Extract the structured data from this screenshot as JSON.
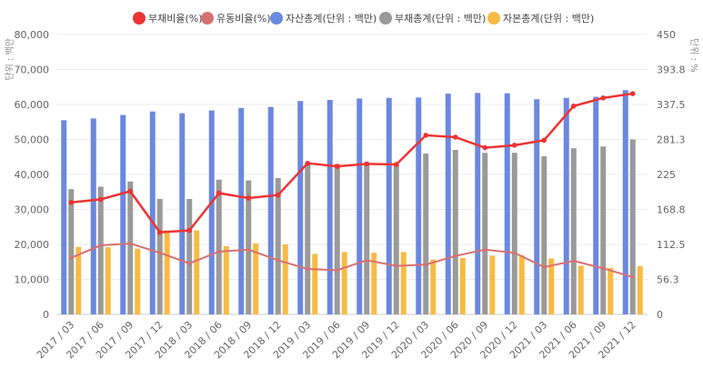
{
  "chart_data": {
    "type": "bar",
    "categories": [
      "2017 / 03",
      "2017 / 06",
      "2017 / 09",
      "2017 / 12",
      "2018 / 03",
      "2018 / 06",
      "2018 / 09",
      "2018 / 12",
      "2019 / 03",
      "2019 / 06",
      "2019 / 09",
      "2019 / 12",
      "2020 / 03",
      "2020 / 06",
      "2020 / 09",
      "2020 / 12",
      "2021 / 03",
      "2021 / 06",
      "2021 / 09",
      "2021 / 12"
    ],
    "y_left": {
      "label": "단위 : 백만",
      "ylim": [
        0,
        80000
      ],
      "ticks": [
        "0",
        "10,000",
        "20,000",
        "30,000",
        "40,000",
        "50,000",
        "60,000",
        "70,000",
        "80,000"
      ]
    },
    "y_right": {
      "label": "단위 : %",
      "ylim": [
        0,
        450
      ],
      "ticks": [
        "0",
        "56.3",
        "112.5",
        "168.8",
        "225",
        "281.3",
        "337.5",
        "393.8",
        "450"
      ]
    },
    "series": [
      {
        "name": "부채비율(%)",
        "kind": "line",
        "axis": "right",
        "color": "#ee3333",
        "values": [
          180,
          185,
          198,
          132,
          135,
          195,
          187,
          192,
          243,
          238,
          242,
          241,
          288,
          285,
          268,
          272,
          280,
          335,
          348,
          355
        ]
      },
      {
        "name": "유동비율(%)",
        "kind": "line",
        "axis": "right",
        "color": "#d87070",
        "values": [
          91,
          111,
          114,
          99,
          82,
          101,
          104,
          87,
          73,
          71,
          87,
          78,
          80,
          94,
          104,
          99,
          76,
          86,
          74,
          60
        ]
      },
      {
        "name": "자산총계(단위 : 백만)",
        "kind": "bar",
        "axis": "left",
        "color": "#6b88e0",
        "values": [
          55500,
          56000,
          57000,
          58000,
          57500,
          58300,
          59000,
          59300,
          61000,
          61300,
          61700,
          61900,
          62000,
          63100,
          63300,
          63200,
          61500,
          61900,
          62200,
          64100
        ]
      },
      {
        "name": "부채총계(단위 : 백만)",
        "kind": "bar",
        "axis": "left",
        "color": "#9a9a9a",
        "values": [
          35800,
          36500,
          38000,
          33000,
          33000,
          38500,
          38300,
          39000,
          43000,
          43000,
          43500,
          43000,
          46000,
          47000,
          46200,
          46200,
          45200,
          47500,
          48000,
          50000
        ]
      },
      {
        "name": "자본총계(단위 : 백만)",
        "kind": "bar",
        "axis": "left",
        "color": "#f7bb45",
        "values": [
          19300,
          19200,
          18800,
          24000,
          24000,
          19500,
          20300,
          20000,
          17300,
          17800,
          17600,
          17800,
          15700,
          16100,
          16800,
          16900,
          16000,
          13900,
          13300,
          13800
        ]
      }
    ],
    "legend_position": "top",
    "grid": true
  }
}
